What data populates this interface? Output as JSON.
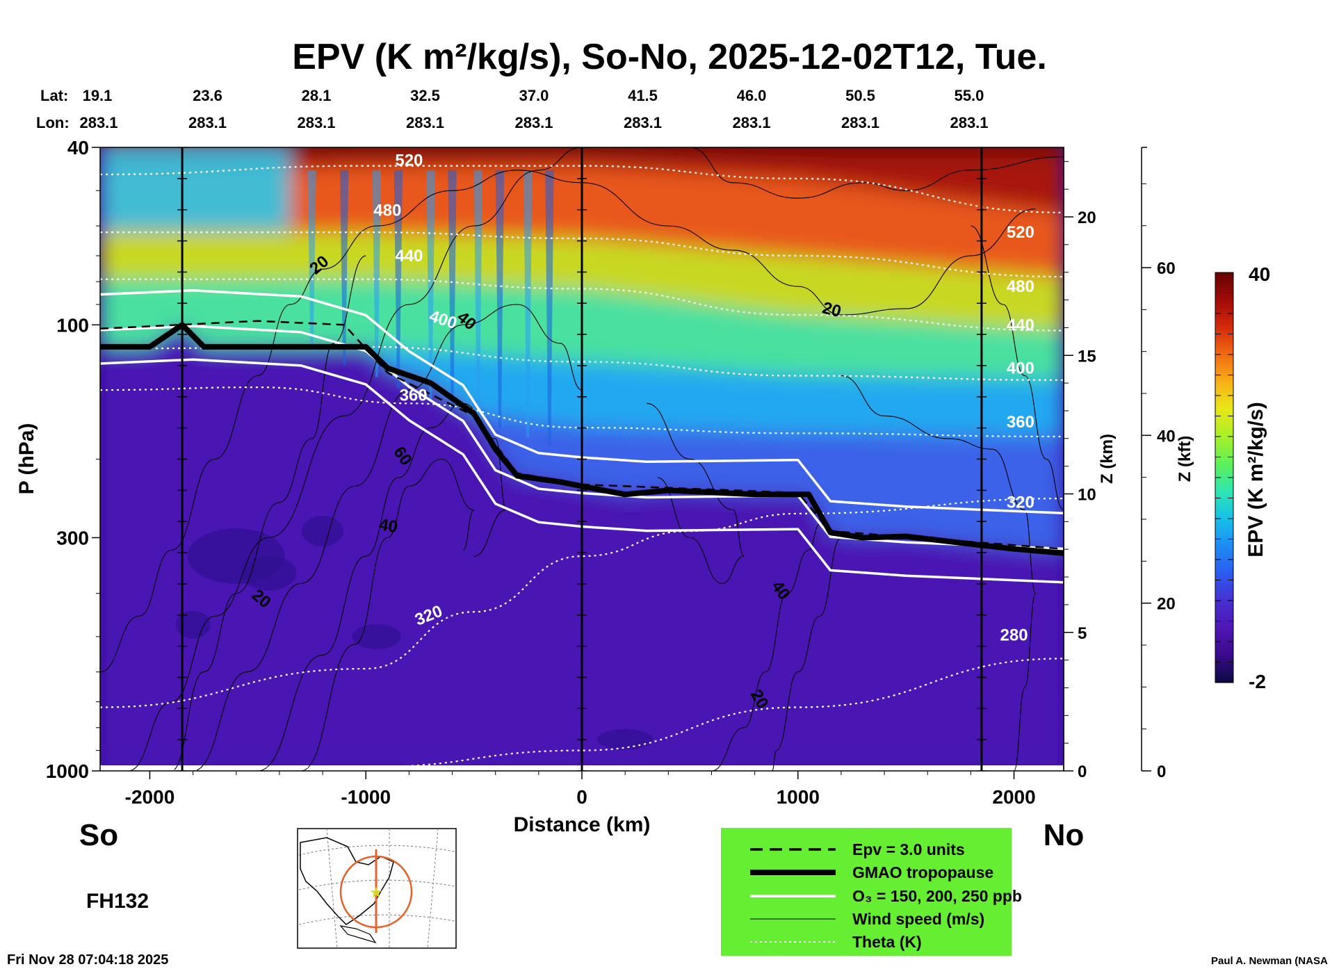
{
  "title": "EPV (K m²/kg/s), So-No, 2025-12-02T12, Tue.",
  "position_labels": {
    "lat_label": "Lat:",
    "lon_label": "Lon:",
    "lat": [
      "19.1",
      "23.6",
      "28.1",
      "32.5",
      "37.0",
      "41.5",
      "46.0",
      "50.5",
      "55.0"
    ],
    "lon": [
      "283.1",
      "283.1",
      "283.1",
      "283.1",
      "283.1",
      "283.1",
      "283.1",
      "283.1",
      "283.1"
    ]
  },
  "chart_data": {
    "type": "heatmap",
    "xlabel": "Distance (km)",
    "ylabel": "P (hPa)",
    "y2label": "Z (km)",
    "y3label": "Z (kft)",
    "xlim": [
      -2230,
      2230
    ],
    "ylim": [
      1000,
      40
    ],
    "y_scale": "log",
    "x_ticks": [
      "-2000",
      "-1000",
      "0",
      "1000",
      "2000"
    ],
    "x_tick_values": [
      -2000,
      -1000,
      0,
      1000,
      2000
    ],
    "y_ticks": [
      "40",
      "100",
      "300",
      "1000"
    ],
    "y_tick_values": [
      40,
      100,
      300,
      1000
    ],
    "z_km_ticks": [
      "0",
      "5",
      "10",
      "15",
      "20"
    ],
    "z_kft_ticks": [
      "0",
      "20",
      "40",
      "60"
    ],
    "vertical_markers_km": [
      -1850,
      0,
      1850
    ],
    "colorbar": {
      "label": "EPV (K m²/kg/s)",
      "min": -2,
      "max": 40,
      "min_label": "-2",
      "max_label": "40",
      "colors": [
        "#0a0a40",
        "#3a0a8c",
        "#5016b4",
        "#4630d0",
        "#2a5cf0",
        "#1e8cf4",
        "#16c0e8",
        "#2ee6b0",
        "#5ef05a",
        "#a8f028",
        "#e8e818",
        "#f8b018",
        "#f06a12",
        "#d42a0c",
        "#a00a06",
        "#640404"
      ]
    },
    "series": [
      {
        "name": "Theta (K)",
        "values": [
          {
            "level": "280",
            "points": [
              [
                -2230,
                1000
              ],
              [
                -1000,
                980
              ],
              [
                0,
                900
              ],
              [
                1000,
                720
              ],
              [
                2230,
                560
              ]
            ]
          },
          {
            "level": "320",
            "points": [
              [
                -2230,
                720
              ],
              [
                -1000,
                590
              ],
              [
                -500,
                440
              ],
              [
                0,
                330
              ],
              [
                500,
                290
              ],
              [
                1000,
                265
              ],
              [
                2230,
                245
              ]
            ]
          },
          {
            "level": "360",
            "points": [
              [
                -2230,
                140
              ],
              [
                -1500,
                138
              ],
              [
                -800,
                150
              ],
              [
                0,
                170
              ],
              [
                1000,
                175
              ],
              [
                2230,
                178
              ]
            ]
          },
          {
            "level": "400",
            "points": [
              [
                -2230,
                113
              ],
              [
                -1000,
                112
              ],
              [
                0,
                121
              ],
              [
                1000,
                130
              ],
              [
                2230,
                133
              ]
            ]
          },
          {
            "level": "440",
            "points": [
              [
                -2230,
                79
              ],
              [
                -1000,
                79
              ],
              [
                0,
                83
              ],
              [
                1000,
                95
              ],
              [
                2230,
                103
              ]
            ]
          },
          {
            "level": "480",
            "points": [
              [
                -2230,
                62
              ],
              [
                -1000,
                62
              ],
              [
                0,
                64
              ],
              [
                1000,
                70
              ],
              [
                2230,
                78
              ]
            ]
          },
          {
            "level": "520",
            "points": [
              [
                -2230,
                46
              ],
              [
                -1000,
                44
              ],
              [
                0,
                44
              ],
              [
                1000,
                47
              ],
              [
                2230,
                56
              ]
            ]
          }
        ]
      },
      {
        "name": "GMAO tropopause",
        "values": [
          [
            -2230,
            112
          ],
          [
            -2000,
            112
          ],
          [
            -1850,
            100
          ],
          [
            -1750,
            112
          ],
          [
            -1000,
            112
          ],
          [
            -900,
            125
          ],
          [
            -700,
            135
          ],
          [
            -500,
            158
          ],
          [
            -400,
            190
          ],
          [
            -300,
            218
          ],
          [
            -100,
            225
          ],
          [
            0,
            230
          ],
          [
            200,
            240
          ],
          [
            400,
            235
          ],
          [
            800,
            240
          ],
          [
            1050,
            240
          ],
          [
            1150,
            292
          ],
          [
            1300,
            300
          ],
          [
            1500,
            298
          ],
          [
            1800,
            310
          ],
          [
            2000,
            318
          ],
          [
            2230,
            325
          ]
        ]
      },
      {
        "name": "O₃ = 150, 200, 250 ppb",
        "values": [
          [
            -2230,
            97
          ],
          [
            -1800,
            95
          ],
          [
            -1300,
            98
          ],
          [
            -1000,
            108
          ],
          [
            -800,
            130
          ],
          [
            -550,
            155
          ],
          [
            -400,
            200
          ],
          [
            -200,
            220
          ],
          [
            0,
            225
          ],
          [
            300,
            230
          ],
          [
            1000,
            228
          ],
          [
            1150,
            282
          ],
          [
            1500,
            290
          ],
          [
            2230,
            300
          ]
        ]
      },
      {
        "name": "Wind speed (m/s)",
        "values": [
          {
            "level": "20",
            "label_at": [
              -1200,
              75
            ]
          },
          {
            "level": "40",
            "label_at": [
              -550,
              100
            ]
          },
          {
            "level": "60",
            "label_at": [
              -850,
              200
            ]
          },
          {
            "level": "40",
            "label_at": [
              -900,
              290
            ]
          },
          {
            "level": "20",
            "label_at": [
              -1500,
              420
            ]
          },
          {
            "level": "20",
            "label_at": [
              1150,
              95
            ]
          },
          {
            "level": "40",
            "label_at": [
              900,
              400
            ]
          },
          {
            "level": "20",
            "label_at": [
              800,
              700
            ]
          }
        ]
      },
      {
        "name": "Epv = 3.0 units",
        "values": [
          [
            -2230,
            102
          ],
          [
            -1500,
            98
          ],
          [
            -1100,
            100
          ],
          [
            -900,
            128
          ],
          [
            -500,
            160
          ],
          [
            -300,
            215
          ],
          [
            0,
            228
          ],
          [
            1000,
            238
          ],
          [
            1150,
            290
          ],
          [
            2230,
            318
          ]
        ]
      }
    ],
    "theta_labels": [
      "520",
      "480",
      "440",
      "400",
      "360",
      "320",
      "280"
    ],
    "wind_labels": [
      "20",
      "40",
      "60",
      "40",
      "20",
      "20",
      "40",
      "20"
    ]
  },
  "bottom": {
    "south": "So",
    "north": "No",
    "forecast_hour": "FH132",
    "timestamp": "Fri Nov 28 07:04:18 2025",
    "credit": "Paul A. Newman (NASA"
  },
  "legend": {
    "background": "#66ee33",
    "items": [
      "Epv = 3.0 units",
      "GMAO tropopause",
      "O₃ = 150, 200, 250 ppb",
      "Wind speed (m/s)",
      "Theta (K)"
    ]
  }
}
